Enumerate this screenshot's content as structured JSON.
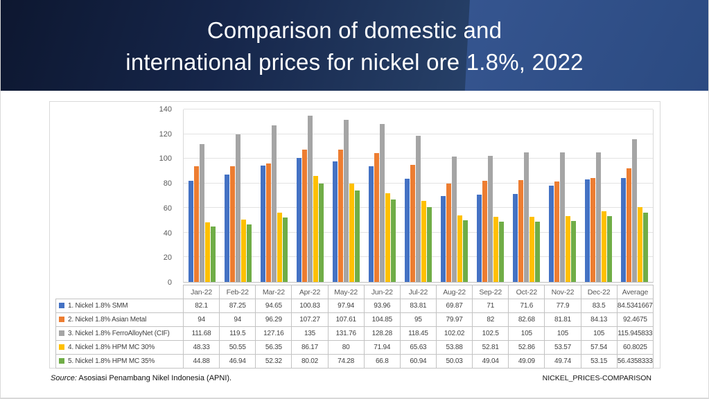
{
  "header": {
    "title_line1": "Comparison of domestic and",
    "title_line2": "international prices for nickel ore 1.8%, 2022"
  },
  "chart_data": {
    "type": "bar",
    "title": "Comparison of domestic and international prices for nickel ore 1.8%, 2022",
    "xlabel": "",
    "ylabel": "",
    "ylim": [
      0,
      140
    ],
    "yticks": [
      0,
      20,
      40,
      60,
      80,
      100,
      120,
      140
    ],
    "grid": true,
    "legend_position": "data-table-left",
    "categories": [
      "Jan-22",
      "Feb-22",
      "Mar-22",
      "Apr-22",
      "May-22",
      "Jun-22",
      "Jul-22",
      "Aug-22",
      "Sep-22",
      "Oct-22",
      "Nov-22",
      "Dec-22",
      "Average"
    ],
    "series": [
      {
        "name": "1. Nickel 1.8% SMM",
        "color": "#4472C4",
        "values": [
          82.1,
          87.25,
          94.65,
          100.83,
          97.94,
          93.96,
          83.81,
          69.87,
          71,
          71.6,
          77.9,
          83.5,
          84.5341667
        ]
      },
      {
        "name": "2. Nickel 1.8% Asian Metal",
        "color": "#ED7D31",
        "values": [
          94,
          94,
          96.29,
          107.27,
          107.61,
          104.85,
          95,
          79.97,
          82,
          82.68,
          81.81,
          84.13,
          92.4675
        ]
      },
      {
        "name": "3. Nickel 1.8% FerroAlloyNet (CIF)",
        "color": "#A5A5A5",
        "values": [
          111.68,
          119.5,
          127.16,
          135,
          131.76,
          128.28,
          118.45,
          102.02,
          102.5,
          105,
          105,
          105,
          115.945833
        ]
      },
      {
        "name": "4. Nickel 1.8% HPM MC 30%",
        "color": "#FFC000",
        "values": [
          48.33,
          50.55,
          56.35,
          86.17,
          80,
          71.94,
          65.63,
          53.88,
          52.81,
          52.86,
          53.57,
          57.54,
          60.8025
        ]
      },
      {
        "name": "5. Nickel 1.8% HPM MC 35%",
        "color": "#70AD47",
        "values": [
          44.88,
          46.94,
          52.32,
          80.02,
          74.28,
          66.8,
          60.94,
          50.03,
          49.04,
          49.09,
          49.74,
          53.15,
          56.4358333
        ]
      }
    ]
  },
  "footer": {
    "source_label": "Source:",
    "source_text": "Asosiasi Penambang Nikel Indonesia (APNI).",
    "doc_tag": "NICKEL_PRICES-COMPARISON"
  }
}
